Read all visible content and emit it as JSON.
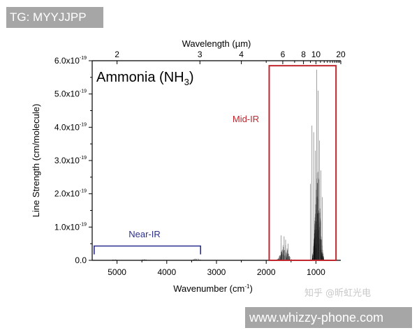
{
  "watermarks": {
    "top_left": "TG: MYYJJPP",
    "bottom_right": "www.whizzy-phone.com",
    "zhihu": "知乎 @昕虹光电"
  },
  "chart_data": {
    "type": "line",
    "title": "Ammonia (NH3)",
    "title_main": "Ammonia (NH",
    "title_sub": "3",
    "title_close": ")",
    "xlabel": "Wavenumber (cm-1)",
    "xlabel_main": "Wavenumber (cm",
    "xlabel_sup": "-1",
    "xlabel_close": ")",
    "x2label": "Wavelength (µm)",
    "ylabel": "Line Strength (cm/molecule)",
    "xlim": [
      5500,
      500
    ],
    "x_reversed": true,
    "ylim": [
      0,
      6e-19
    ],
    "xticks": [
      5000,
      4000,
      3000,
      2000,
      1000
    ],
    "xtick_labels": [
      "5000",
      "4000",
      "3000",
      "2000",
      "1000"
    ],
    "x2ticks_um": [
      2,
      3,
      4,
      6,
      8,
      10,
      20
    ],
    "x2tick_labels": [
      "2",
      "3",
      "4",
      "6",
      "8",
      "10",
      "20"
    ],
    "x2minor_um": [
      5,
      7,
      9,
      11,
      12,
      13,
      14,
      15,
      16,
      17,
      18,
      19
    ],
    "yticks": [
      0,
      1e-19,
      2e-19,
      3e-19,
      4e-19,
      5e-19,
      6e-19
    ],
    "ytick_labels": [
      {
        "main": "0.0",
        "exp": ""
      },
      {
        "main": "1.0x10",
        "exp": "-19"
      },
      {
        "main": "2.0x10",
        "exp": "-19"
      },
      {
        "main": "3.0x10",
        "exp": "-19"
      },
      {
        "main": "4.0x10",
        "exp": "-19"
      },
      {
        "main": "5.0x10",
        "exp": "-19"
      },
      {
        "main": "6.0x10",
        "exp": "-19"
      }
    ],
    "line_color": "#000000",
    "bands": [
      {
        "center": 5050,
        "width": 90,
        "max": 4e-21,
        "count": 25
      },
      {
        "center": 4450,
        "width": 120,
        "max": 4.5e-21,
        "count": 30
      },
      {
        "center": 3400,
        "width": 130,
        "max": 7e-21,
        "count": 35
      },
      {
        "center": 1630,
        "width": 160,
        "max": 5.5e-20,
        "count": 70
      },
      {
        "center": 960,
        "width": 120,
        "max": 3e-19,
        "count": 140
      }
    ],
    "peaks": [
      {
        "x": 983,
        "y": 5.73e-19
      },
      {
        "x": 955,
        "y": 5.1e-19
      },
      {
        "x": 1080,
        "y": 4.05e-19
      },
      {
        "x": 1045,
        "y": 3.85e-19
      },
      {
        "x": 930,
        "y": 3.6e-19
      },
      {
        "x": 1010,
        "y": 3.3e-19
      },
      {
        "x": 900,
        "y": 2.7e-19
      },
      {
        "x": 1110,
        "y": 2.3e-19
      },
      {
        "x": 870,
        "y": 1.9e-19
      },
      {
        "x": 1700,
        "y": 7.5e-20
      },
      {
        "x": 1640,
        "y": 7.2e-20
      },
      {
        "x": 1610,
        "y": 6.2e-20
      },
      {
        "x": 1560,
        "y": 5e-20
      }
    ],
    "annotations": [
      {
        "text": "Mid-IR",
        "color": "#c0262d",
        "box_x": [
          1940,
          596
        ],
        "box_y_top": 5.85e-19
      },
      {
        "text": "Near-IR",
        "color": "#2b2f8c",
        "bracket_x": [
          5460,
          3320
        ],
        "bracket_y": 4.3e-20
      }
    ],
    "grid": false
  }
}
